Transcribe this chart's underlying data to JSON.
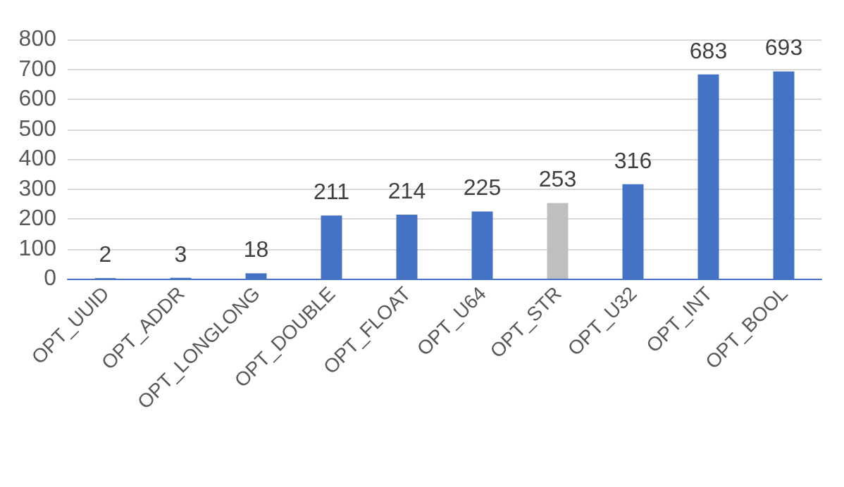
{
  "chart_data": {
    "type": "bar",
    "categories": [
      "OPT_UUID",
      "OPT_ADDR",
      "OPT_LONGLONG",
      "OPT_DOUBLE",
      "OPT_FLOAT",
      "OPT_U64",
      "OPT_STR",
      "OPT_U32",
      "OPT_INT",
      "OPT_BOOL"
    ],
    "values": [
      2,
      3,
      18,
      211,
      214,
      225,
      253,
      316,
      683,
      693
    ],
    "colors": [
      "#4472c4",
      "#4472c4",
      "#4472c4",
      "#4472c4",
      "#4472c4",
      "#4472c4",
      "#bfbfbf",
      "#4472c4",
      "#4472c4",
      "#4472c4"
    ],
    "ylim": [
      0,
      800
    ],
    "yticks": [
      0,
      100,
      200,
      300,
      400,
      500,
      600,
      700,
      800
    ],
    "grid": "y",
    "data_labels": true
  }
}
